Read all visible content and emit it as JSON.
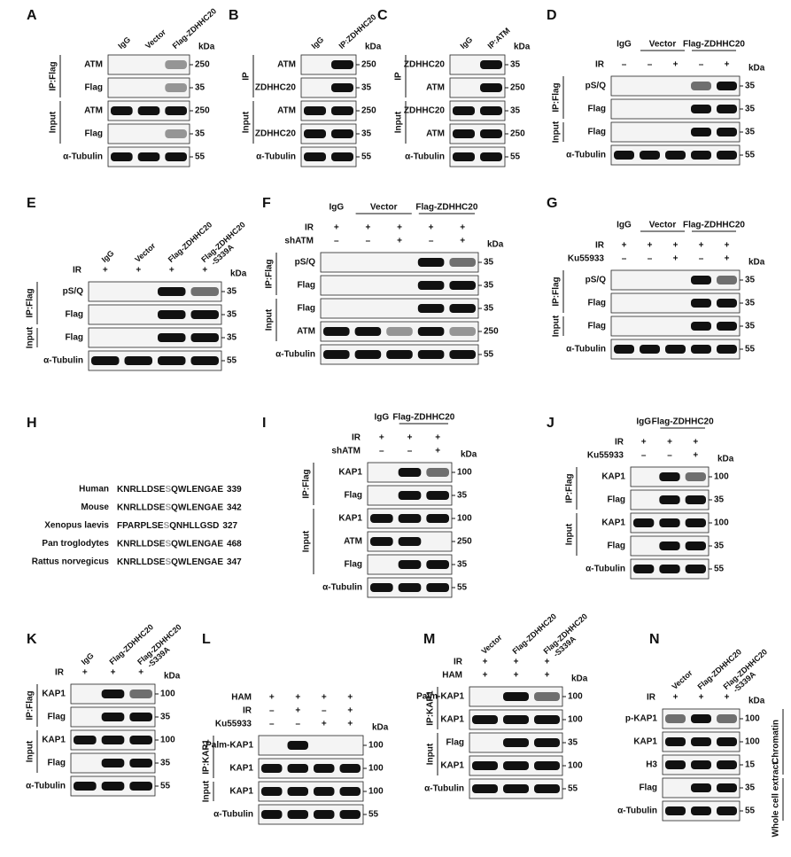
{
  "panels": [
    {
      "letter": "A",
      "headers": [
        [
          "IgG"
        ],
        [
          "Vector"
        ],
        [
          "Flag-ZDHHC20"
        ]
      ],
      "conditions": [],
      "rows": [
        {
          "label": "ATM",
          "marker": "250"
        },
        {
          "label": "Flag",
          "marker": "35"
        },
        {
          "label": "ATM",
          "marker": "250"
        },
        {
          "label": "Flag",
          "marker": "35"
        },
        {
          "label": "α-Tubulin",
          "marker": "55"
        }
      ],
      "groups": [
        "IP:Flag",
        "Input"
      ],
      "kda": "kDa"
    },
    {
      "letter": "B",
      "headers": [
        [
          "IgG"
        ],
        [
          "IP:ZDHHC20"
        ]
      ],
      "conditions": [],
      "rows": [
        {
          "label": "ATM",
          "marker": "250"
        },
        {
          "label": "ZDHHC20",
          "marker": "35"
        },
        {
          "label": "ATM",
          "marker": "250"
        },
        {
          "label": "ZDHHC20",
          "marker": "35"
        },
        {
          "label": "α-Tubulin",
          "marker": "55"
        }
      ],
      "groups": [
        "IP",
        "Input"
      ],
      "kda": "kDa"
    },
    {
      "letter": "C",
      "headers": [
        [
          "IgG"
        ],
        [
          "IP:ATM"
        ]
      ],
      "conditions": [],
      "rows": [
        {
          "label": "ZDHHC20",
          "marker": "35"
        },
        {
          "label": "ATM",
          "marker": "250"
        },
        {
          "label": "ZDHHC20",
          "marker": "35"
        },
        {
          "label": "ATM",
          "marker": "250"
        },
        {
          "label": "α-Tubulin",
          "marker": "55"
        }
      ],
      "groups": [
        "IP",
        "Input"
      ],
      "kda": "kDa"
    },
    {
      "letter": "D",
      "headers": [
        [
          "IgG"
        ],
        [
          "Vector"
        ],
        [
          "Flag-ZDHHC20"
        ]
      ],
      "conditions": [
        {
          "label": "IR",
          "marks": [
            "–",
            "–",
            "+",
            "–",
            "+"
          ]
        }
      ],
      "rows": [
        {
          "label": "pS/Q",
          "marker": "35"
        },
        {
          "label": "Flag",
          "marker": "35"
        },
        {
          "label": "Flag",
          "marker": "35"
        },
        {
          "label": "α-Tubulin",
          "marker": "55"
        }
      ],
      "groups": [
        "IP:Flag",
        "Input"
      ],
      "kda": "kDa"
    },
    {
      "letter": "E",
      "headers": [
        [
          "IgG"
        ],
        [
          "Vector"
        ],
        [
          "Flag-ZDHHC20"
        ],
        [
          "Flag-ZDHHC20",
          "-S339A"
        ]
      ],
      "conditions": [
        {
          "label": "IR",
          "marks": [
            "+",
            "+",
            "+",
            "+"
          ]
        }
      ],
      "rows": [
        {
          "label": "pS/Q",
          "marker": "35"
        },
        {
          "label": "Flag",
          "marker": "35"
        },
        {
          "label": "Flag",
          "marker": "35"
        },
        {
          "label": "α-Tubulin",
          "marker": "55"
        }
      ],
      "groups": [
        "IP:Flag",
        "Input"
      ],
      "kda": "kDa"
    },
    {
      "letter": "F",
      "headers": [
        [
          "IgG"
        ],
        [
          "Vector"
        ],
        [
          "Flag-ZDHHC20"
        ]
      ],
      "conditions": [
        {
          "label": "IR",
          "marks": [
            "+",
            "+",
            "+",
            "+",
            "+"
          ]
        },
        {
          "label": "shATM",
          "marks": [
            "–",
            "–",
            "+",
            "–",
            "+"
          ]
        }
      ],
      "rows": [
        {
          "label": "pS/Q",
          "marker": "35"
        },
        {
          "label": "Flag",
          "marker": "35"
        },
        {
          "label": "Flag",
          "marker": "35"
        },
        {
          "label": "ATM",
          "marker": "250"
        },
        {
          "label": "α-Tubulin",
          "marker": "55"
        }
      ],
      "groups": [
        "IP:Flag",
        "Input"
      ],
      "kda": "kDa"
    },
    {
      "letter": "G",
      "headers": [
        [
          "IgG"
        ],
        [
          "Vector"
        ],
        [
          "Flag-ZDHHC20"
        ]
      ],
      "conditions": [
        {
          "label": "IR",
          "marks": [
            "+",
            "+",
            "+",
            "+",
            "+"
          ]
        },
        {
          "label": "Ku55933",
          "marks": [
            "–",
            "–",
            "+",
            "–",
            "+"
          ]
        }
      ],
      "rows": [
        {
          "label": "pS/Q",
          "marker": "35"
        },
        {
          "label": "Flag",
          "marker": "35"
        },
        {
          "label": "Flag",
          "marker": "35"
        },
        {
          "label": "α-Tubulin",
          "marker": "55"
        }
      ],
      "groups": [
        "IP:Flag",
        "Input"
      ],
      "kda": "kDa"
    },
    {
      "letter": "I",
      "headers": [
        [
          "IgG"
        ],
        [
          "Flag-ZDHHC20"
        ]
      ],
      "conditions": [
        {
          "label": "IR",
          "marks": [
            "+",
            "+",
            "+"
          ]
        },
        {
          "label": "shATM",
          "marks": [
            "–",
            "–",
            "+"
          ]
        }
      ],
      "rows": [
        {
          "label": "KAP1",
          "marker": "100"
        },
        {
          "label": "Flag",
          "marker": "35"
        },
        {
          "label": "KAP1",
          "marker": "100"
        },
        {
          "label": "ATM",
          "marker": "250"
        },
        {
          "label": "Flag",
          "marker": "35"
        },
        {
          "label": "α-Tubulin",
          "marker": "55"
        }
      ],
      "groups": [
        "IP:Flag",
        "Input"
      ],
      "kda": "kDa"
    },
    {
      "letter": "J",
      "headers": [
        [
          "IgG"
        ],
        [
          "Flag-ZDHHC20"
        ]
      ],
      "conditions": [
        {
          "label": "IR",
          "marks": [
            "+",
            "+",
            "+"
          ]
        },
        {
          "label": "Ku55933",
          "marks": [
            "–",
            "–",
            "+"
          ]
        }
      ],
      "rows": [
        {
          "label": "KAP1",
          "marker": "100"
        },
        {
          "label": "Flag",
          "marker": "35"
        },
        {
          "label": "KAP1",
          "marker": "100"
        },
        {
          "label": "Flag",
          "marker": "35"
        },
        {
          "label": "α-Tubulin",
          "marker": "55"
        }
      ],
      "groups": [
        "IP:Flag",
        "Input"
      ],
      "kda": "kDa"
    },
    {
      "letter": "K",
      "headers": [
        [
          "IgG"
        ],
        [
          "Flag-ZDHHC20"
        ],
        [
          "Flag-ZDHHC20",
          "-S339A"
        ]
      ],
      "conditions": [
        {
          "label": "IR",
          "marks": [
            "+",
            "+",
            "+"
          ]
        }
      ],
      "rows": [
        {
          "label": "KAP1",
          "marker": "100"
        },
        {
          "label": "Flag",
          "marker": "35"
        },
        {
          "label": "KAP1",
          "marker": "100"
        },
        {
          "label": "Flag",
          "marker": "35"
        },
        {
          "label": "α-Tubulin",
          "marker": "55"
        }
      ],
      "groups": [
        "IP:Flag",
        "Input"
      ],
      "kda": "kDa"
    },
    {
      "letter": "L",
      "headers": [],
      "conditions": [
        {
          "label": "HAM",
          "marks": [
            "+",
            "+",
            "+",
            "+"
          ]
        },
        {
          "label": "IR",
          "marks": [
            "–",
            "+",
            "–",
            "+"
          ]
        },
        {
          "label": "Ku55933",
          "marks": [
            "–",
            "–",
            "+",
            "+"
          ]
        }
      ],
      "rows": [
        {
          "label": "Palm-KAP1",
          "marker": "100"
        },
        {
          "label": "KAP1",
          "marker": "100"
        },
        {
          "label": "KAP1",
          "marker": "100"
        },
        {
          "label": "α-Tubulin",
          "marker": "55"
        }
      ],
      "groups": [
        "IP:KAP1",
        "Input"
      ],
      "kda": "kDa"
    },
    {
      "letter": "M",
      "headers": [
        [
          "Vector"
        ],
        [
          "Flag-ZDHHC20"
        ],
        [
          "Flag-ZDHHC20",
          "-S339A"
        ]
      ],
      "conditions": [
        {
          "label": "IR",
          "marks": [
            "+",
            "+",
            "+"
          ]
        },
        {
          "label": "HAM",
          "marks": [
            "+",
            "+",
            "+"
          ]
        }
      ],
      "rows": [
        {
          "label": "Palm-KAP1",
          "marker": "100"
        },
        {
          "label": "KAP1",
          "marker": "100"
        },
        {
          "label": "Flag",
          "marker": "35"
        },
        {
          "label": "KAP1",
          "marker": "100"
        },
        {
          "label": "α-Tubulin",
          "marker": "55"
        }
      ],
      "groups": [
        "IP:KAP1",
        "Input"
      ],
      "kda": "kDa"
    },
    {
      "letter": "N",
      "headers": [
        [
          "Vector"
        ],
        [
          "Flag-ZDHHC20"
        ],
        [
          "Flag-ZDHHC20",
          "-S339A"
        ]
      ],
      "conditions": [
        {
          "label": "IR",
          "marks": [
            "+",
            "+",
            "+"
          ]
        }
      ],
      "rows": [
        {
          "label": "p-KAP1",
          "marker": "100"
        },
        {
          "label": "KAP1",
          "marker": "100"
        },
        {
          "label": "H3",
          "marker": "15"
        },
        {
          "label": "Flag",
          "marker": "35"
        },
        {
          "label": "α-Tubulin",
          "marker": "55"
        }
      ],
      "groups": [
        "Chromatin",
        "Whole cell extract"
      ],
      "kda": "kDa"
    }
  ],
  "alignment": {
    "letter": "H",
    "rows": [
      {
        "species": "Human",
        "before": "KNRLLDSE",
        "site": "S",
        "after": "QWLENGAE",
        "number": "339"
      },
      {
        "species": "Mouse",
        "before": "KNRLLDSE",
        "site": "S",
        "after": "QWLENGAE",
        "number": "342"
      },
      {
        "species": "Xenopus laevis",
        "before": "FPARPLSE",
        "site": "S",
        "after": "QNHLLGSD",
        "number": "327"
      },
      {
        "species": "Pan troglodytes",
        "before": "KNRLLDSE",
        "site": "S",
        "after": "QWLENGAE",
        "number": "468"
      },
      {
        "species": "Rattus norvegicus",
        "before": "KNRLLDSE",
        "site": "S",
        "after": "QWLENGAE",
        "number": "347"
      }
    ]
  }
}
